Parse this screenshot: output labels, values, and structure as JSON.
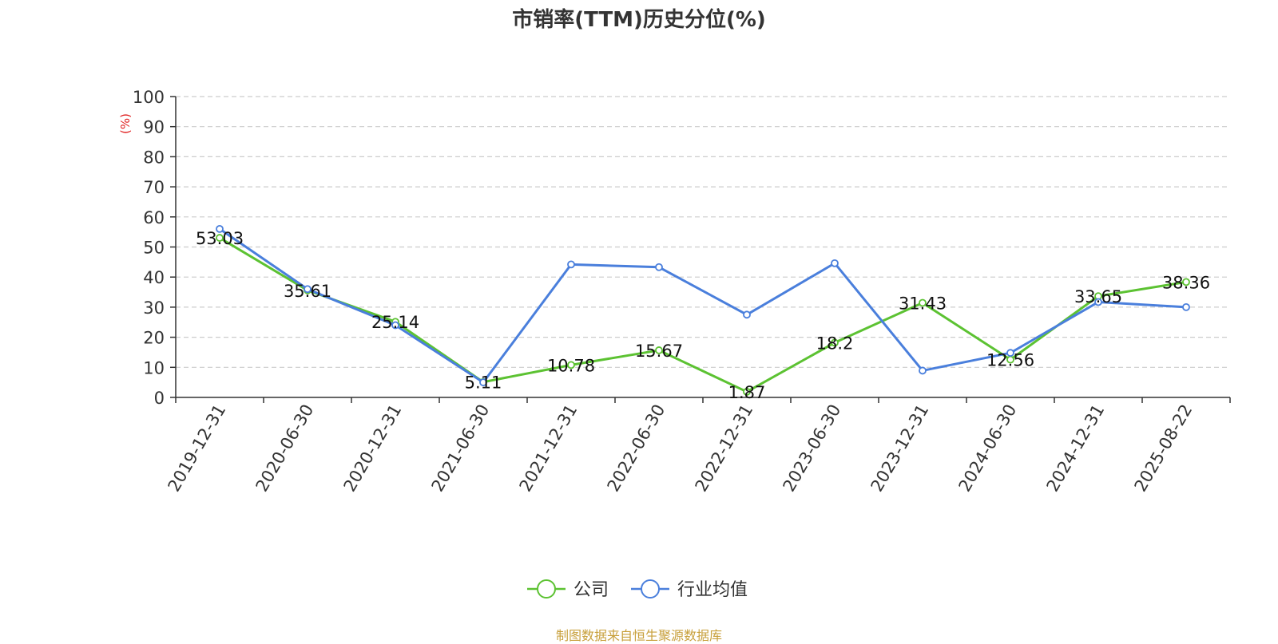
{
  "chart_data": {
    "type": "line",
    "title": "市销率(TTM)历史分位(%)",
    "ylabel": "(%)",
    "xlabel": "",
    "ylim": [
      0,
      100
    ],
    "yticks": [
      0,
      10,
      20,
      30,
      40,
      50,
      60,
      70,
      80,
      90,
      100
    ],
    "grid": true,
    "legend_position": "bottom-center",
    "categories": [
      "2019-12-31",
      "2020-06-30",
      "2020-12-31",
      "2021-06-30",
      "2021-12-31",
      "2022-06-30",
      "2022-12-31",
      "2023-06-30",
      "2023-12-31",
      "2024-06-30",
      "2024-12-31",
      "2025-08-22"
    ],
    "series": [
      {
        "name": "公司",
        "color": "#5cc232",
        "values": [
          53.03,
          35.61,
          25.14,
          5.11,
          10.78,
          15.67,
          1.87,
          18.2,
          31.43,
          12.56,
          33.65,
          38.36
        ],
        "labels": [
          "53.03",
          "35.61",
          "25.14",
          "5.11",
          "10.78",
          "15.67",
          "1.87",
          "18.2",
          "31.43",
          "12.56",
          "33.65",
          "38.36"
        ]
      },
      {
        "name": "行业均值",
        "color": "#4a7fdc",
        "values": [
          56,
          36,
          24,
          5,
          44.2,
          43.3,
          27.5,
          44.6,
          8.9,
          14.8,
          31.7,
          30
        ]
      }
    ]
  },
  "source": "制图数据来自恒生聚源数据库"
}
